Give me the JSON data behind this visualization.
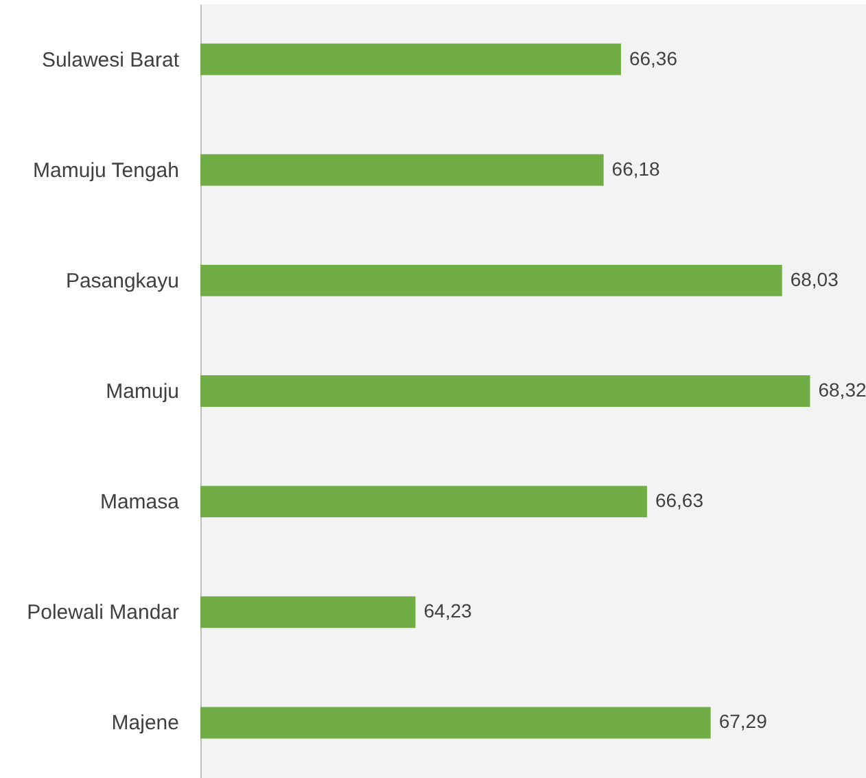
{
  "chart_data": {
    "type": "bar",
    "orientation": "horizontal",
    "categories": [
      "Sulawesi Barat",
      "Mamuju Tengah",
      "Pasangkayu",
      "Mamuju",
      "Mamasa",
      "Polewali Mandar",
      "Majene"
    ],
    "values": [
      66.36,
      66.18,
      68.03,
      68.32,
      66.63,
      64.23,
      67.29
    ],
    "value_labels": [
      "66,36",
      "66,18",
      "68,03",
      "68,32",
      "66,63",
      "64,23",
      "67,29"
    ],
    "color": "#70ad47",
    "xlim": [
      62,
      68.9
    ],
    "tick_labels": "y"
  }
}
